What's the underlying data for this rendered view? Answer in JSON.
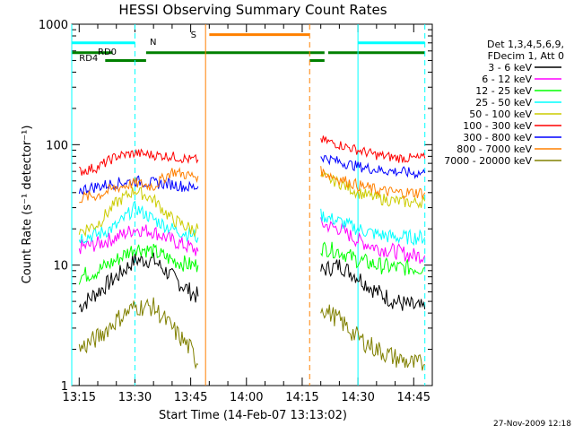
{
  "chart_data": {
    "type": "line",
    "title": "HESSI Observing Summary Count Rates",
    "xlabel": "Start Time (14-Feb-07 13:13:02)",
    "ylabel": "Count Rate (s⁻¹ detector⁻¹)",
    "y_scale": "log",
    "xlim": [
      "13:13",
      "14:50"
    ],
    "ylim": [
      1,
      1000
    ],
    "x_ticks": [
      "13:15",
      "13:30",
      "13:45",
      "14:00",
      "14:15",
      "14:30",
      "14:45"
    ],
    "y_ticks": [
      "1",
      "10",
      "100",
      "1000"
    ],
    "legend": {
      "placement": "right",
      "header": [
        "Det 1,3,4,5,6,9,",
        "FDecim 1, Att 0"
      ]
    },
    "footer": "27-Nov-2009 12:18",
    "series": [
      {
        "name": "3 - 6 keV",
        "color": "#000000",
        "x": [
          "13:15",
          "13:20",
          "13:25",
          "13:30",
          "13:35",
          "13:40",
          "13:45",
          "13:47",
          "14:20",
          "14:25",
          "14:30",
          "14:35",
          "14:40",
          "14:45",
          "14:48"
        ],
        "values": [
          4.5,
          6,
          8,
          11,
          11,
          8,
          6,
          5.5,
          9,
          10,
          8,
          6,
          5,
          4.5,
          4.3
        ]
      },
      {
        "name": "6 - 12 keV",
        "color": "#ff00ff",
        "x": [
          "13:15",
          "13:20",
          "13:25",
          "13:30",
          "13:35",
          "13:40",
          "13:45",
          "13:47",
          "14:20",
          "14:25",
          "14:30",
          "14:35",
          "14:40",
          "14:45",
          "14:48"
        ],
        "values": [
          14,
          15,
          17,
          20,
          19,
          16,
          14,
          13,
          22,
          20,
          16,
          14,
          13,
          12,
          12
        ]
      },
      {
        "name": "12 - 25 keV",
        "color": "#00ff00",
        "x": [
          "13:15",
          "13:20",
          "13:25",
          "13:30",
          "13:35",
          "13:40",
          "13:45",
          "13:47",
          "14:20",
          "14:25",
          "14:30",
          "14:35",
          "14:40",
          "14:45",
          "14:48"
        ],
        "values": [
          8,
          9,
          11,
          14,
          13,
          11,
          10,
          10,
          14,
          13,
          11,
          10,
          9.5,
          9.5,
          9.5
        ]
      },
      {
        "name": "25 - 50 keV",
        "color": "#00ffff",
        "x": [
          "13:15",
          "13:20",
          "13:25",
          "13:30",
          "13:35",
          "13:40",
          "13:45",
          "13:47",
          "14:20",
          "14:25",
          "14:30",
          "14:35",
          "14:40",
          "14:45",
          "14:48"
        ],
        "values": [
          17,
          18,
          21,
          30,
          24,
          20,
          18,
          17,
          26,
          23,
          20,
          18,
          17,
          17,
          17
        ]
      },
      {
        "name": "50 - 100 keV",
        "color": "#cccc00",
        "x": [
          "13:15",
          "13:20",
          "13:25",
          "13:30",
          "13:35",
          "13:40",
          "13:45",
          "13:47",
          "14:20",
          "14:25",
          "14:30",
          "14:35",
          "14:40",
          "14:45",
          "14:48"
        ],
        "values": [
          19,
          22,
          33,
          42,
          35,
          24,
          20,
          20,
          55,
          48,
          40,
          36,
          34,
          33,
          34
        ]
      },
      {
        "name": "100 - 300 keV",
        "color": "#ff0000",
        "x": [
          "13:15",
          "13:20",
          "13:25",
          "13:30",
          "13:35",
          "13:40",
          "13:45",
          "13:47",
          "14:20",
          "14:25",
          "14:30",
          "14:35",
          "14:40",
          "14:45",
          "14:48"
        ],
        "values": [
          60,
          65,
          80,
          85,
          82,
          80,
          75,
          75,
          110,
          100,
          90,
          82,
          78,
          77,
          77
        ]
      },
      {
        "name": "300 - 800 keV",
        "color": "#0000ff",
        "x": [
          "13:15",
          "13:20",
          "13:25",
          "13:30",
          "13:35",
          "13:40",
          "13:45",
          "13:47",
          "14:20",
          "14:25",
          "14:30",
          "14:35",
          "14:40",
          "14:45",
          "14:48"
        ],
        "values": [
          42,
          45,
          48,
          50,
          48,
          47,
          44,
          45,
          80,
          72,
          66,
          62,
          60,
          58,
          58
        ]
      },
      {
        "name": "800 - 7000 keV",
        "color": "#ff8000",
        "x": [
          "13:15",
          "13:20",
          "13:25",
          "13:30",
          "13:35",
          "13:40",
          "13:45",
          "13:47",
          "14:20",
          "14:25",
          "14:30",
          "14:35",
          "14:40",
          "14:45",
          "14:48"
        ],
        "values": [
          36,
          38,
          44,
          48,
          45,
          60,
          55,
          55,
          60,
          52,
          46,
          42,
          40,
          40,
          40
        ]
      },
      {
        "name": "7000 - 20000 keV",
        "color": "#808000",
        "x": [
          "13:15",
          "13:20",
          "13:25",
          "13:30",
          "13:35",
          "13:40",
          "13:45",
          "13:47",
          "14:20",
          "14:25",
          "14:30",
          "14:35",
          "14:40",
          "14:45",
          "14:48"
        ],
        "values": [
          2,
          2.5,
          3.5,
          4.5,
          4.5,
          3,
          2,
          1.5,
          4.5,
          3.5,
          2.5,
          2,
          1.7,
          1.5,
          1.5
        ]
      }
    ],
    "annotations": [
      {
        "label": "N",
        "color": "#00ffff",
        "kind": "bar",
        "segments": [
          [
            "13:13",
            "13:30"
          ],
          [
            "14:30",
            "14:48"
          ]
        ],
        "level": 700
      },
      {
        "label": "S",
        "color": "#ff8000",
        "kind": "bar",
        "segments": [
          [
            "13:50",
            "14:17"
          ]
        ],
        "level": 820
      },
      {
        "label": "RD0",
        "color": "#008000",
        "kind": "bar",
        "segments": [
          [
            "13:13",
            "13:24"
          ]
        ],
        "level": 580
      },
      {
        "label": "RD4",
        "color": "#008000",
        "kind": "bar",
        "segments": [
          [
            "13:33",
            "14:17"
          ],
          [
            "14:17",
            "14:21"
          ],
          [
            "14:22",
            "14:48"
          ]
        ],
        "level": 580
      },
      {
        "label": "",
        "color": "#008000",
        "kind": "bar",
        "segments": [
          [
            "13:22",
            "13:33"
          ],
          [
            "14:17",
            "14:21"
          ]
        ],
        "level": 500
      },
      {
        "label": "",
        "color": "#00ffff",
        "kind": "vline",
        "style": "solid",
        "x": [
          "13:13",
          "14:30"
        ]
      },
      {
        "label": "",
        "color": "#00ffff",
        "kind": "vline",
        "style": "dashed",
        "x": [
          "13:30",
          "14:48"
        ]
      },
      {
        "label": "",
        "color": "#ff8000",
        "kind": "vline",
        "style": "solid",
        "x": [
          "13:49"
        ]
      },
      {
        "label": "",
        "color": "#ff8000",
        "kind": "vline",
        "style": "dashed",
        "x": [
          "14:17"
        ]
      }
    ]
  }
}
